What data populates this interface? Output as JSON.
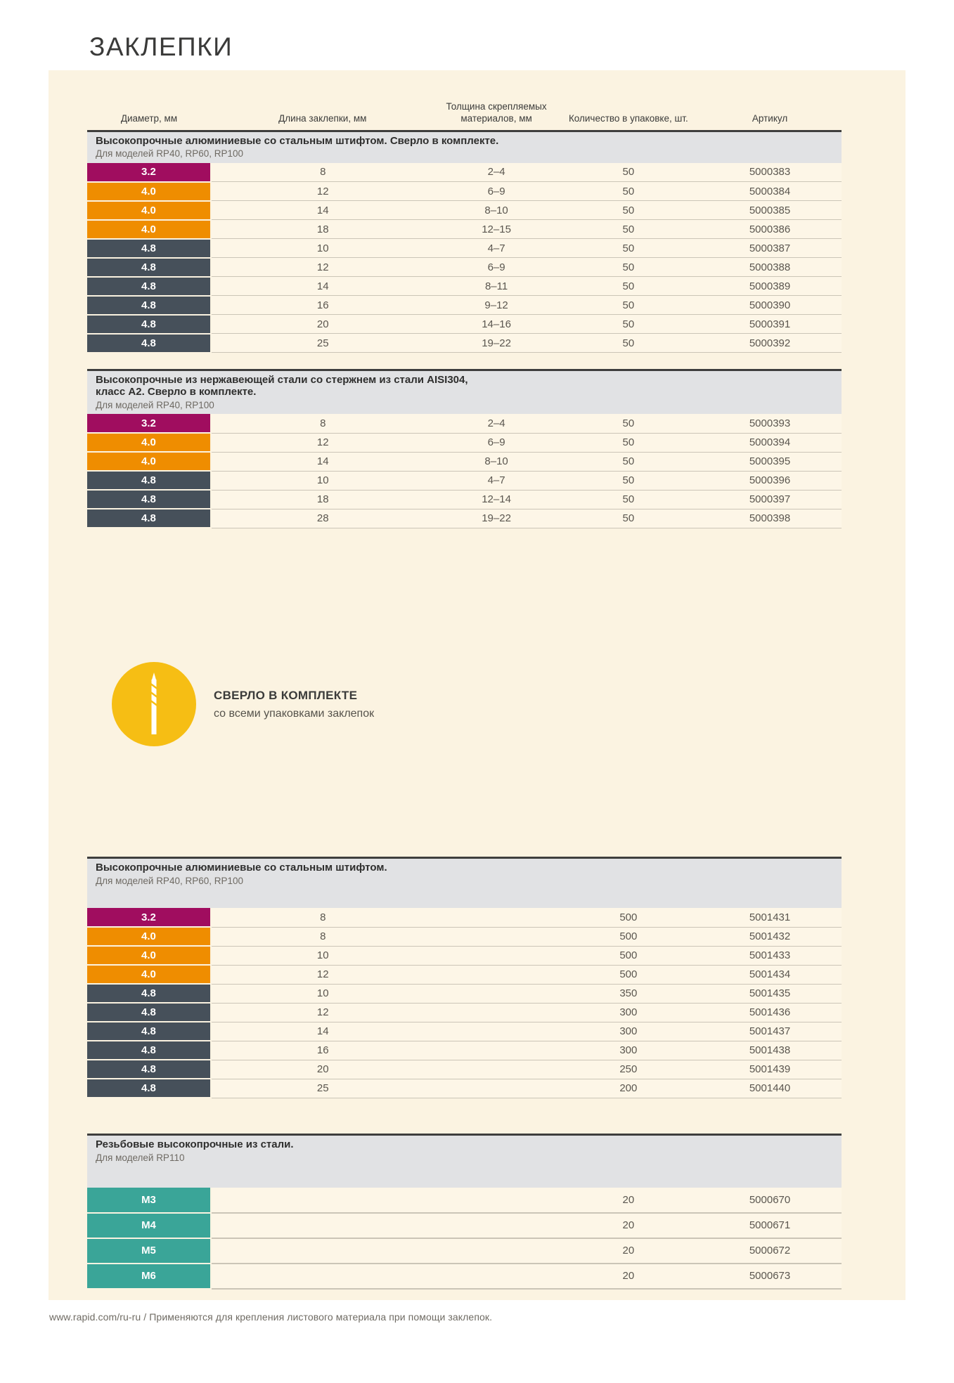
{
  "page": {
    "title": "ЗАКЛЕПКИ",
    "footer": {
      "url": "www.rapid.com/ru-ru",
      "separator": "/",
      "note": "Применяются для крепления листового материала при помощи заклепок."
    }
  },
  "colors": {
    "magenta": "#a00d5f",
    "orange": "#ef8d00",
    "slate": "#46505a",
    "teal": "#3aa598",
    "badge_yellow": "#f6be14",
    "panel_cream": "#fbf3e1",
    "row_cream": "#fdf6e7",
    "band_gray": "#e1e2e4",
    "rule_dark": "#3e3e3d"
  },
  "table": {
    "header_lines": [
      [
        "Диаметр, мм"
      ],
      [
        "Длина заклепки, мм"
      ],
      [
        "Толщина скрепляемых",
        "материалов, мм"
      ],
      [
        "Количество в упаковке, шт."
      ],
      [
        "Артикул"
      ]
    ]
  },
  "feature": {
    "title": "СВЕРЛО В КОМПЛЕКТЕ",
    "subtitle": "со всеми упаковками заклепок",
    "icon": "drill-bit-icon"
  },
  "sections": [
    {
      "title_lines": [
        "Высокопрочные алюминиевые со стальным штифтом. Сверло в комплекте."
      ],
      "subtitle": "Для моделей RP40, RP60, RP100",
      "rows": [
        {
          "diameter": "3.2",
          "color": "magenta",
          "length": "8",
          "thickness": "2–4",
          "qty": "50",
          "sku": "5000383"
        },
        {
          "diameter": "4.0",
          "color": "orange",
          "length": "12",
          "thickness": "6–9",
          "qty": "50",
          "sku": "5000384"
        },
        {
          "diameter": "4.0",
          "color": "orange",
          "length": "14",
          "thickness": "8–10",
          "qty": "50",
          "sku": "5000385"
        },
        {
          "diameter": "4.0",
          "color": "orange",
          "length": "18",
          "thickness": "12–15",
          "qty": "50",
          "sku": "5000386"
        },
        {
          "diameter": "4.8",
          "color": "slate",
          "length": "10",
          "thickness": "4–7",
          "qty": "50",
          "sku": "5000387"
        },
        {
          "diameter": "4.8",
          "color": "slate",
          "length": "12",
          "thickness": "6–9",
          "qty": "50",
          "sku": "5000388"
        },
        {
          "diameter": "4.8",
          "color": "slate",
          "length": "14",
          "thickness": "8–11",
          "qty": "50",
          "sku": "5000389"
        },
        {
          "diameter": "4.8",
          "color": "slate",
          "length": "16",
          "thickness": "9–12",
          "qty": "50",
          "sku": "5000390"
        },
        {
          "diameter": "4.8",
          "color": "slate",
          "length": "20",
          "thickness": "14–16",
          "qty": "50",
          "sku": "5000391"
        },
        {
          "diameter": "4.8",
          "color": "slate",
          "length": "25",
          "thickness": "19–22",
          "qty": "50",
          "sku": "5000392"
        }
      ]
    },
    {
      "title_lines": [
        "Высокопрочные из нержавеющей стали со стержнем из стали AISI304,",
        "класс А2. Сверло в комплекте."
      ],
      "subtitle": "Для моделей RP40, RP100",
      "rows": [
        {
          "diameter": "3.2",
          "color": "magenta",
          "length": "8",
          "thickness": "2–4",
          "qty": "50",
          "sku": "5000393"
        },
        {
          "diameter": "4.0",
          "color": "orange",
          "length": "12",
          "thickness": "6–9",
          "qty": "50",
          "sku": "5000394"
        },
        {
          "diameter": "4.0",
          "color": "orange",
          "length": "14",
          "thickness": "8–10",
          "qty": "50",
          "sku": "5000395"
        },
        {
          "diameter": "4.8",
          "color": "slate",
          "length": "10",
          "thickness": "4–7",
          "qty": "50",
          "sku": "5000396"
        },
        {
          "diameter": "4.8",
          "color": "slate",
          "length": "18",
          "thickness": "12–14",
          "qty": "50",
          "sku": "5000397"
        },
        {
          "diameter": "4.8",
          "color": "slate",
          "length": "28",
          "thickness": "19–22",
          "qty": "50",
          "sku": "5000398"
        }
      ]
    },
    {
      "title_lines": [
        "Высокопрочные алюминиевые со стальным штифтом."
      ],
      "subtitle": "Для моделей RP40, RP60, RP100",
      "rows": [
        {
          "diameter": "3.2",
          "color": "magenta",
          "length": "8",
          "thickness": "",
          "qty": "500",
          "sku": "5001431"
        },
        {
          "diameter": "4.0",
          "color": "orange",
          "length": "8",
          "thickness": "",
          "qty": "500",
          "sku": "5001432"
        },
        {
          "diameter": "4.0",
          "color": "orange",
          "length": "10",
          "thickness": "",
          "qty": "500",
          "sku": "5001433"
        },
        {
          "diameter": "4.0",
          "color": "orange",
          "length": "12",
          "thickness": "",
          "qty": "500",
          "sku": "5001434"
        },
        {
          "diameter": "4.8",
          "color": "slate",
          "length": "10",
          "thickness": "",
          "qty": "350",
          "sku": "5001435"
        },
        {
          "diameter": "4.8",
          "color": "slate",
          "length": "12",
          "thickness": "",
          "qty": "300",
          "sku": "5001436"
        },
        {
          "diameter": "4.8",
          "color": "slate",
          "length": "14",
          "thickness": "",
          "qty": "300",
          "sku": "5001437"
        },
        {
          "diameter": "4.8",
          "color": "slate",
          "length": "16",
          "thickness": "",
          "qty": "300",
          "sku": "5001438"
        },
        {
          "diameter": "4.8",
          "color": "slate",
          "length": "20",
          "thickness": "",
          "qty": "250",
          "sku": "5001439"
        },
        {
          "diameter": "4.8",
          "color": "slate",
          "length": "25",
          "thickness": "",
          "qty": "200",
          "sku": "5001440"
        }
      ]
    },
    {
      "title_lines": [
        "Резьбовые высокопрочные из стали."
      ],
      "subtitle": "Для моделей RP110",
      "rows": [
        {
          "diameter": "M3",
          "color": "teal",
          "length": "",
          "thickness": "",
          "qty": "20",
          "sku": "5000670"
        },
        {
          "diameter": "M4",
          "color": "teal",
          "length": "",
          "thickness": "",
          "qty": "20",
          "sku": "5000671"
        },
        {
          "diameter": "M5",
          "color": "teal",
          "length": "",
          "thickness": "",
          "qty": "20",
          "sku": "5000672"
        },
        {
          "diameter": "M6",
          "color": "teal",
          "length": "",
          "thickness": "",
          "qty": "20",
          "sku": "5000673"
        }
      ]
    }
  ]
}
